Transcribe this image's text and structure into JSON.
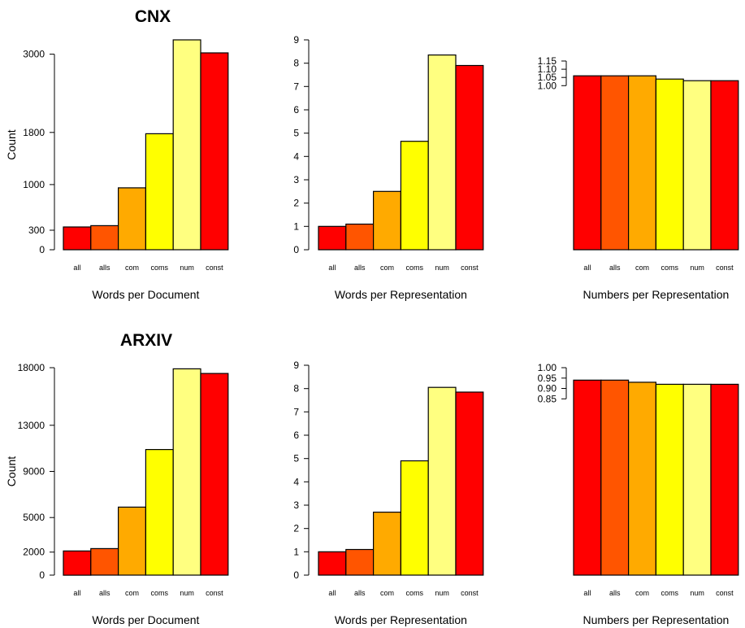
{
  "chart_data": [
    {
      "type": "bar",
      "row_title": "CNX",
      "xlabel": "Words per Document",
      "ylabel": "Count",
      "categories": [
        "all",
        "alls",
        "com",
        "coms",
        "num",
        "const"
      ],
      "values": [
        350,
        370,
        950,
        1780,
        3220,
        3020
      ],
      "yticks": [
        0,
        300,
        1000,
        1800,
        3000
      ],
      "yticks_display": [
        "0",
        "300",
        "1000",
        "1800",
        "3000"
      ],
      "ylim": [
        0,
        3220
      ],
      "colors": [
        "#ff0000",
        "#ff5500",
        "#ffaa00",
        "#ffff00",
        "#ffff80",
        "#ff0000"
      ]
    },
    {
      "type": "bar",
      "xlabel": "Words per Representation",
      "categories": [
        "all",
        "alls",
        "com",
        "coms",
        "num",
        "const"
      ],
      "values": [
        1.0,
        1.1,
        2.5,
        4.65,
        8.35,
        7.9
      ],
      "yticks": [
        0,
        1,
        2,
        3,
        4,
        5,
        6,
        7,
        8,
        9
      ],
      "yticks_display": [
        "0",
        "1",
        "2",
        "3",
        "4",
        "5",
        "6",
        "7",
        "8",
        "9"
      ],
      "ylim": [
        0,
        9
      ],
      "colors": [
        "#ff0000",
        "#ff5500",
        "#ffaa00",
        "#ffff00",
        "#ffff80",
        "#ff0000"
      ]
    },
    {
      "type": "bar",
      "xlabel": "Numbers per Representation",
      "categories": [
        "all",
        "alls",
        "com",
        "coms",
        "num",
        "const"
      ],
      "values": [
        1.06,
        1.06,
        1.06,
        1.04,
        1.03,
        1.03
      ],
      "yticks": [
        1.0,
        1.05,
        1.1,
        1.15
      ],
      "yticks_display": [
        "1.00",
        "1.05",
        "1.10",
        "1.15"
      ],
      "ylim": [
        0,
        1.15
      ],
      "colors": [
        "#ff0000",
        "#ff5500",
        "#ffaa00",
        "#ffff00",
        "#ffff80",
        "#ff0000"
      ]
    },
    {
      "type": "bar",
      "row_title": "ARXIV",
      "xlabel": "Words per Document",
      "ylabel": "Count",
      "categories": [
        "all",
        "alls",
        "com",
        "coms",
        "num",
        "const"
      ],
      "values": [
        2100,
        2300,
        5900,
        10900,
        17900,
        17500
      ],
      "yticks": [
        0,
        2000,
        5000,
        9000,
        13000,
        18000
      ],
      "yticks_display": [
        "0",
        "2000",
        "5000",
        "9000",
        "13000",
        "18000"
      ],
      "ylim": [
        0,
        18000
      ],
      "colors": [
        "#ff0000",
        "#ff5500",
        "#ffaa00",
        "#ffff00",
        "#ffff80",
        "#ff0000"
      ]
    },
    {
      "type": "bar",
      "xlabel": "Words per Representation",
      "categories": [
        "all",
        "alls",
        "com",
        "coms",
        "num",
        "const"
      ],
      "values": [
        1.0,
        1.1,
        2.7,
        4.9,
        8.05,
        7.85
      ],
      "yticks": [
        0,
        1,
        2,
        3,
        4,
        5,
        6,
        7,
        8,
        9
      ],
      "yticks_display": [
        "0",
        "1",
        "2",
        "3",
        "4",
        "5",
        "6",
        "7",
        "8",
        "9"
      ],
      "ylim": [
        0,
        9
      ],
      "colors": [
        "#ff0000",
        "#ff5500",
        "#ffaa00",
        "#ffff00",
        "#ffff80",
        "#ff0000"
      ]
    },
    {
      "type": "bar",
      "xlabel": "Numbers per Representation",
      "categories": [
        "all",
        "alls",
        "com",
        "coms",
        "num",
        "const"
      ],
      "values": [
        0.94,
        0.94,
        0.93,
        0.92,
        0.92,
        0.92
      ],
      "yticks": [
        0.85,
        0.9,
        0.95,
        1.0
      ],
      "yticks_display": [
        "0.85",
        "0.90",
        "0.95",
        "1.00"
      ],
      "ylim": [
        0,
        1.0
      ],
      "colors": [
        "#ff0000",
        "#ff5500",
        "#ffaa00",
        "#ffff00",
        "#ffff80",
        "#ff0000"
      ]
    }
  ]
}
